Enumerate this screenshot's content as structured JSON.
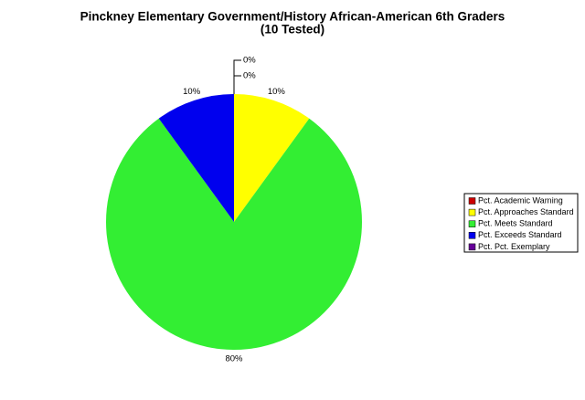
{
  "chart_data": {
    "type": "pie",
    "title": "Pinckney Elementary Government/History African-American 6th Graders",
    "subtitle": "(10 Tested)",
    "categories": [
      "Pct. Academic Warning",
      "Pct. Approaches Standard",
      "Pct. Meets Standard",
      "Pct. Exceeds Standard",
      "Pct. Pct. Exemplary"
    ],
    "values": [
      0,
      10,
      80,
      10,
      0
    ],
    "value_labels": [
      "0%",
      "10%",
      "80%",
      "10%",
      "0%"
    ],
    "colors": [
      "#cc0000",
      "#ffff00",
      "#33ee33",
      "#0000ee",
      "#660099"
    ],
    "legend": "right"
  }
}
